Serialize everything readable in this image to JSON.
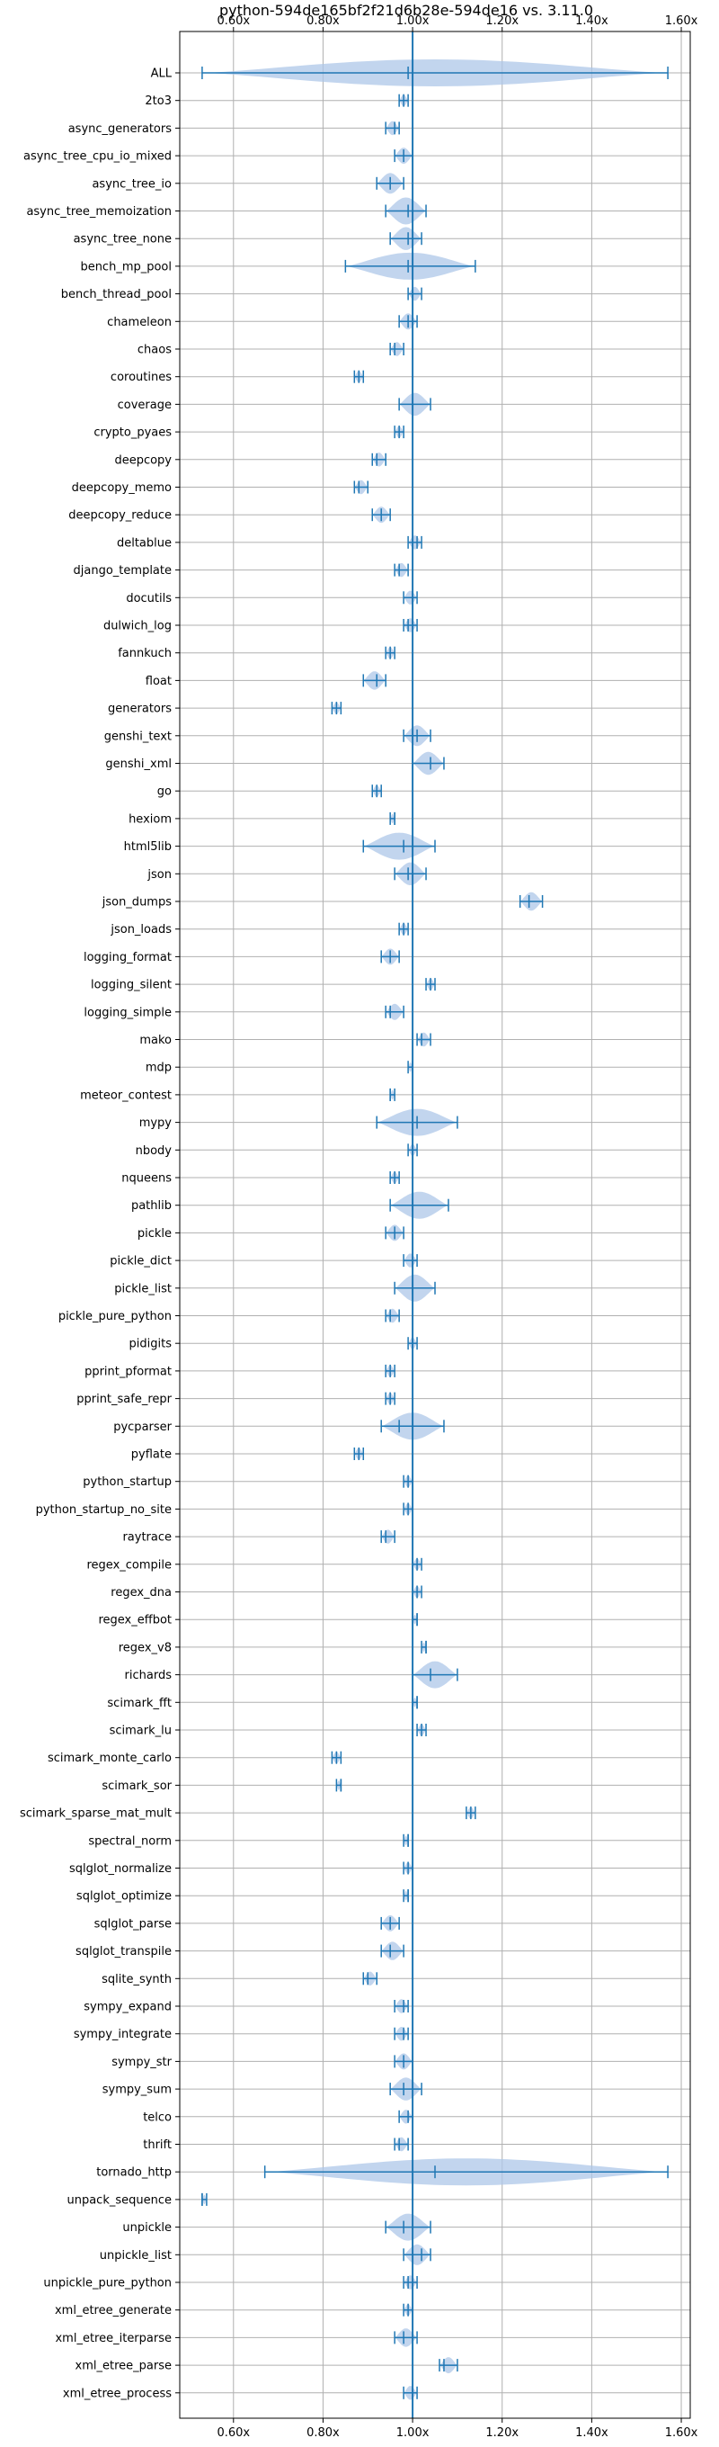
{
  "chart_data": {
    "type": "violin",
    "title": "python-594de165bf2f21d6b28e-594de16 vs. 3.11.0",
    "xlim": [
      0.48,
      1.62
    ],
    "x_ticks": [
      0.6,
      0.8,
      1.0,
      1.2,
      1.4,
      1.6
    ],
    "x_tick_labels": [
      "0.60x",
      "0.80x",
      "1.00x",
      "1.20x",
      "1.40x",
      "1.60x"
    ],
    "reference_line": 1.0,
    "grid": true,
    "colors": {
      "line": "#1f77b4",
      "fill": "#aec7e8",
      "grid": "#b0b0b0"
    },
    "benchmarks": [
      {
        "name": "ALL",
        "min": 0.53,
        "median": 0.99,
        "max": 1.57
      },
      {
        "name": "2to3",
        "min": 0.97,
        "median": 0.98,
        "max": 0.99
      },
      {
        "name": "async_generators",
        "min": 0.94,
        "median": 0.96,
        "max": 0.97
      },
      {
        "name": "async_tree_cpu_io_mixed",
        "min": 0.96,
        "median": 0.98,
        "max": 1.0
      },
      {
        "name": "async_tree_io",
        "min": 0.92,
        "median": 0.95,
        "max": 0.98
      },
      {
        "name": "async_tree_memoization",
        "min": 0.94,
        "median": 0.99,
        "max": 1.03
      },
      {
        "name": "async_tree_none",
        "min": 0.95,
        "median": 0.99,
        "max": 1.02
      },
      {
        "name": "bench_mp_pool",
        "min": 0.85,
        "median": 0.99,
        "max": 1.14
      },
      {
        "name": "bench_thread_pool",
        "min": 0.99,
        "median": 1.0,
        "max": 1.02
      },
      {
        "name": "chameleon",
        "min": 0.97,
        "median": 0.99,
        "max": 1.01
      },
      {
        "name": "chaos",
        "min": 0.95,
        "median": 0.96,
        "max": 0.98
      },
      {
        "name": "coroutines",
        "min": 0.87,
        "median": 0.88,
        "max": 0.89
      },
      {
        "name": "coverage",
        "min": 0.97,
        "median": 1.0,
        "max": 1.04
      },
      {
        "name": "crypto_pyaes",
        "min": 0.96,
        "median": 0.97,
        "max": 0.98
      },
      {
        "name": "deepcopy",
        "min": 0.91,
        "median": 0.92,
        "max": 0.94
      },
      {
        "name": "deepcopy_memo",
        "min": 0.87,
        "median": 0.88,
        "max": 0.9
      },
      {
        "name": "deepcopy_reduce",
        "min": 0.91,
        "median": 0.93,
        "max": 0.95
      },
      {
        "name": "deltablue",
        "min": 0.99,
        "median": 1.01,
        "max": 1.02
      },
      {
        "name": "django_template",
        "min": 0.96,
        "median": 0.97,
        "max": 0.99
      },
      {
        "name": "docutils",
        "min": 0.98,
        "median": 1.0,
        "max": 1.01
      },
      {
        "name": "dulwich_log",
        "min": 0.98,
        "median": 0.99,
        "max": 1.01
      },
      {
        "name": "fannkuch",
        "min": 0.94,
        "median": 0.95,
        "max": 0.96
      },
      {
        "name": "float",
        "min": 0.89,
        "median": 0.92,
        "max": 0.94
      },
      {
        "name": "generators",
        "min": 0.82,
        "median": 0.83,
        "max": 0.84
      },
      {
        "name": "genshi_text",
        "min": 0.98,
        "median": 1.01,
        "max": 1.04
      },
      {
        "name": "genshi_xml",
        "min": 1.0,
        "median": 1.04,
        "max": 1.07
      },
      {
        "name": "go",
        "min": 0.91,
        "median": 0.92,
        "max": 0.93
      },
      {
        "name": "hexiom",
        "min": 0.95,
        "median": 0.96,
        "max": 0.96
      },
      {
        "name": "html5lib",
        "min": 0.89,
        "median": 0.98,
        "max": 1.05
      },
      {
        "name": "json",
        "min": 0.96,
        "median": 0.99,
        "max": 1.03
      },
      {
        "name": "json_dumps",
        "min": 1.24,
        "median": 1.26,
        "max": 1.29
      },
      {
        "name": "json_loads",
        "min": 0.97,
        "median": 0.98,
        "max": 0.99
      },
      {
        "name": "logging_format",
        "min": 0.93,
        "median": 0.95,
        "max": 0.97
      },
      {
        "name": "logging_silent",
        "min": 1.03,
        "median": 1.04,
        "max": 1.05
      },
      {
        "name": "logging_simple",
        "min": 0.94,
        "median": 0.95,
        "max": 0.98
      },
      {
        "name": "mako",
        "min": 1.01,
        "median": 1.02,
        "max": 1.04
      },
      {
        "name": "mdp",
        "min": 0.99,
        "median": 1.0,
        "max": 1.0
      },
      {
        "name": "meteor_contest",
        "min": 0.95,
        "median": 0.95,
        "max": 0.96
      },
      {
        "name": "mypy",
        "min": 0.92,
        "median": 1.01,
        "max": 1.1
      },
      {
        "name": "nbody",
        "min": 0.99,
        "median": 1.0,
        "max": 1.01
      },
      {
        "name": "nqueens",
        "min": 0.95,
        "median": 0.96,
        "max": 0.97
      },
      {
        "name": "pathlib",
        "min": 0.95,
        "median": 1.0,
        "max": 1.08
      },
      {
        "name": "pickle",
        "min": 0.94,
        "median": 0.96,
        "max": 0.98
      },
      {
        "name": "pickle_dict",
        "min": 0.98,
        "median": 1.0,
        "max": 1.01
      },
      {
        "name": "pickle_list",
        "min": 0.96,
        "median": 1.0,
        "max": 1.05
      },
      {
        "name": "pickle_pure_python",
        "min": 0.94,
        "median": 0.95,
        "max": 0.97
      },
      {
        "name": "pidigits",
        "min": 0.99,
        "median": 1.0,
        "max": 1.01
      },
      {
        "name": "pprint_pformat",
        "min": 0.94,
        "median": 0.95,
        "max": 0.96
      },
      {
        "name": "pprint_safe_repr",
        "min": 0.94,
        "median": 0.95,
        "max": 0.96
      },
      {
        "name": "pycparser",
        "min": 0.93,
        "median": 0.97,
        "max": 1.07
      },
      {
        "name": "pyflate",
        "min": 0.87,
        "median": 0.88,
        "max": 0.89
      },
      {
        "name": "python_startup",
        "min": 0.98,
        "median": 0.99,
        "max": 1.0
      },
      {
        "name": "python_startup_no_site",
        "min": 0.98,
        "median": 0.99,
        "max": 1.0
      },
      {
        "name": "raytrace",
        "min": 0.93,
        "median": 0.94,
        "max": 0.96
      },
      {
        "name": "regex_compile",
        "min": 1.0,
        "median": 1.01,
        "max": 1.02
      },
      {
        "name": "regex_dna",
        "min": 1.0,
        "median": 1.01,
        "max": 1.02
      },
      {
        "name": "regex_effbot",
        "min": 1.0,
        "median": 1.01,
        "max": 1.01
      },
      {
        "name": "regex_v8",
        "min": 1.02,
        "median": 1.03,
        "max": 1.03
      },
      {
        "name": "richards",
        "min": 1.0,
        "median": 1.04,
        "max": 1.1
      },
      {
        "name": "scimark_fft",
        "min": 1.0,
        "median": 1.01,
        "max": 1.01
      },
      {
        "name": "scimark_lu",
        "min": 1.01,
        "median": 1.02,
        "max": 1.03
      },
      {
        "name": "scimark_monte_carlo",
        "min": 0.82,
        "median": 0.83,
        "max": 0.84
      },
      {
        "name": "scimark_sor",
        "min": 0.83,
        "median": 0.84,
        "max": 0.84
      },
      {
        "name": "scimark_sparse_mat_mult",
        "min": 1.12,
        "median": 1.13,
        "max": 1.14
      },
      {
        "name": "spectral_norm",
        "min": 0.98,
        "median": 0.99,
        "max": 0.99
      },
      {
        "name": "sqlglot_normalize",
        "min": 0.98,
        "median": 0.99,
        "max": 1.0
      },
      {
        "name": "sqlglot_optimize",
        "min": 0.98,
        "median": 0.99,
        "max": 0.99
      },
      {
        "name": "sqlglot_parse",
        "min": 0.93,
        "median": 0.95,
        "max": 0.97
      },
      {
        "name": "sqlglot_transpile",
        "min": 0.93,
        "median": 0.95,
        "max": 0.98
      },
      {
        "name": "sqlite_synth",
        "min": 0.89,
        "median": 0.9,
        "max": 0.92
      },
      {
        "name": "sympy_expand",
        "min": 0.96,
        "median": 0.98,
        "max": 0.99
      },
      {
        "name": "sympy_integrate",
        "min": 0.96,
        "median": 0.98,
        "max": 0.99
      },
      {
        "name": "sympy_str",
        "min": 0.96,
        "median": 0.98,
        "max": 1.0
      },
      {
        "name": "sympy_sum",
        "min": 0.95,
        "median": 0.98,
        "max": 1.02
      },
      {
        "name": "telco",
        "min": 0.97,
        "median": 0.99,
        "max": 1.0
      },
      {
        "name": "thrift",
        "min": 0.96,
        "median": 0.97,
        "max": 0.99
      },
      {
        "name": "tornado_http",
        "min": 0.67,
        "median": 1.05,
        "max": 1.57
      },
      {
        "name": "unpack_sequence",
        "min": 0.53,
        "median": 0.53,
        "max": 0.54
      },
      {
        "name": "unpickle",
        "min": 0.94,
        "median": 0.98,
        "max": 1.04
      },
      {
        "name": "unpickle_list",
        "min": 0.98,
        "median": 1.02,
        "max": 1.04
      },
      {
        "name": "unpickle_pure_python",
        "min": 0.98,
        "median": 0.99,
        "max": 1.01
      },
      {
        "name": "xml_etree_generate",
        "min": 0.98,
        "median": 0.99,
        "max": 1.0
      },
      {
        "name": "xml_etree_iterparse",
        "min": 0.96,
        "median": 0.98,
        "max": 1.01
      },
      {
        "name": "xml_etree_parse",
        "min": 1.06,
        "median": 1.07,
        "max": 1.1
      },
      {
        "name": "xml_etree_process",
        "min": 0.98,
        "median": 1.0,
        "max": 1.01
      }
    ]
  }
}
